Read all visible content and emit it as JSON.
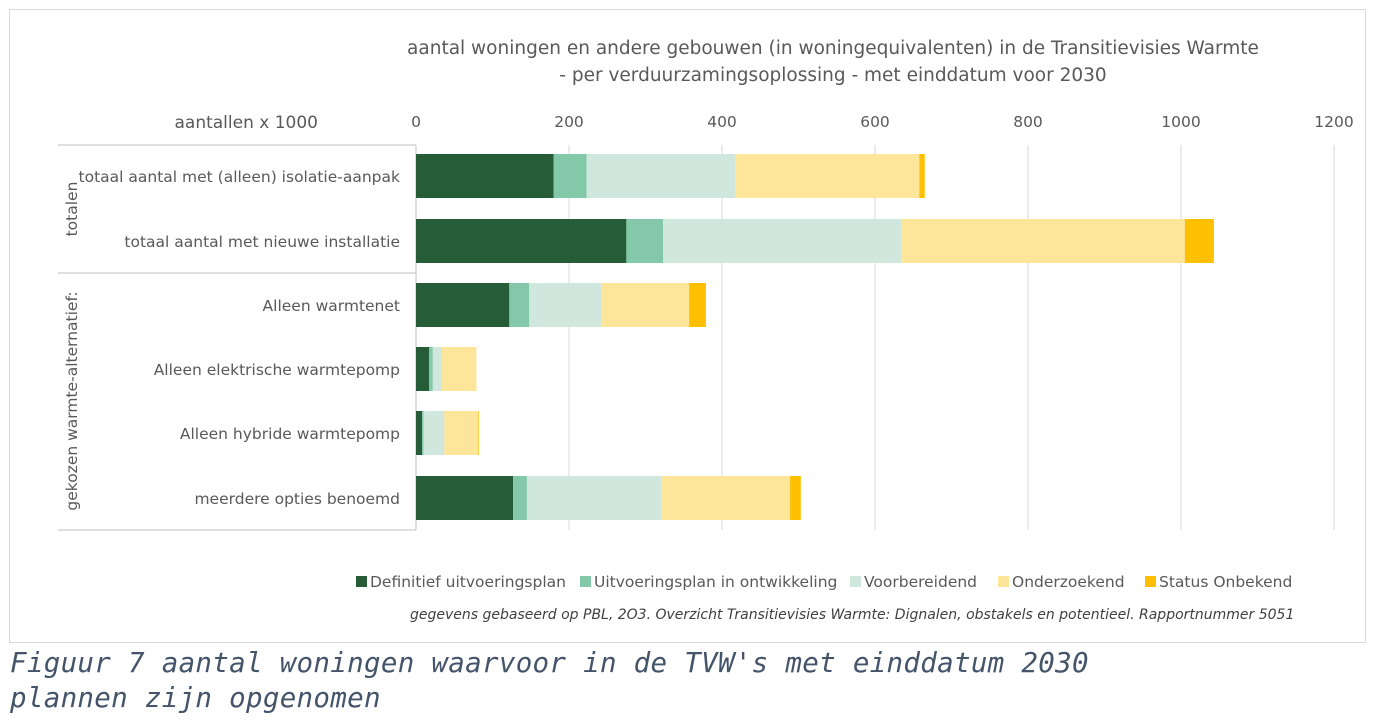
{
  "chart_data": {
    "type": "bar",
    "orientation": "horizontal",
    "stacked": true,
    "title_lines": [
      "aantal woningen en andere gebouwen (in woningequivalenten) in de Transitievisies Warmte",
      "- per verduurzamingsoplossing - met einddatum voor 2030"
    ],
    "axis_unit_label": "aantallen x 1000",
    "xlim": [
      0,
      1200
    ],
    "xticks": [
      "0",
      "200",
      "400",
      "600",
      "800",
      "1000",
      "1200"
    ],
    "grid": "vertical",
    "legend_position": "bottom",
    "groups": [
      "totalen",
      "gekozen warmte-alternatief:"
    ],
    "categories": [
      "totaal aantal met (alleen) isolatie-aanpak",
      "totaal aantal met nieuwe installatie",
      "Alleen warmtenet",
      "Alleen elektrische warmtepomp",
      "Alleen hybride warmtepomp",
      "meerdere opties benoemd"
    ],
    "category_group": [
      0,
      0,
      1,
      1,
      1,
      1
    ],
    "series": [
      {
        "name": "Definitief uitvoeringsplan",
        "color": "#275c38",
        "values": [
          180,
          275,
          122,
          17,
          8,
          127
        ]
      },
      {
        "name": "Uitvoeringsplan in ontwikkeling",
        "color": "#82c8a9",
        "values": [
          43,
          48,
          26,
          5,
          2,
          18
        ]
      },
      {
        "name": "Voorbereidend",
        "color": "#cfe7dd",
        "values": [
          195,
          312,
          94,
          12,
          27,
          176
        ]
      },
      {
        "name": "Onderzoekend",
        "color": "#fde699",
        "values": [
          240,
          370,
          115,
          45,
          44,
          168
        ]
      },
      {
        "name": "Status Onbekend",
        "color": "#fec000",
        "values": [
          7,
          38,
          22,
          0,
          1,
          14
        ]
      }
    ]
  },
  "source_note": "gegevens gebaseerd op PBL, 2O3. Overzicht Transitievisies Warmte: Dignalen, obstakels en potentieel. Rapportnummer 5051",
  "caption": {
    "line1": "Figuur 7 aantal woningen waarvoor in de TVW's met einddatum 2030",
    "line2": "plannen zijn opgenomen"
  }
}
